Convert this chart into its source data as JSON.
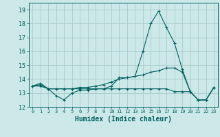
{
  "xlabel": "Humidex (Indice chaleur)",
  "xlim": [
    -0.5,
    23.5
  ],
  "ylim": [
    12,
    19.5
  ],
  "yticks": [
    12,
    13,
    14,
    15,
    16,
    17,
    18,
    19
  ],
  "xticks": [
    0,
    1,
    2,
    3,
    4,
    5,
    6,
    7,
    8,
    9,
    10,
    11,
    12,
    13,
    14,
    15,
    16,
    17,
    18,
    19,
    20,
    21,
    22,
    23
  ],
  "background_color": "#cce8e8",
  "grid_color": "#aacccc",
  "line_color": "#006060",
  "lines": [
    [
      13.5,
      13.7,
      13.3,
      12.8,
      12.5,
      13.0,
      13.2,
      13.2,
      13.3,
      13.3,
      13.5,
      14.1,
      14.1,
      14.2,
      16.0,
      18.0,
      18.9,
      17.7,
      16.6,
      14.7,
      13.1,
      12.5,
      12.5,
      13.4
    ],
    [
      13.5,
      13.6,
      13.3,
      13.3,
      13.3,
      13.3,
      13.4,
      13.4,
      13.5,
      13.6,
      13.8,
      14.0,
      14.1,
      14.2,
      14.3,
      14.5,
      14.6,
      14.8,
      14.8,
      14.5,
      13.1,
      12.5,
      12.5,
      13.4
    ],
    [
      13.5,
      13.5,
      13.3,
      13.3,
      13.3,
      13.3,
      13.3,
      13.3,
      13.3,
      13.3,
      13.3,
      13.3,
      13.3,
      13.3,
      13.3,
      13.3,
      13.3,
      13.3,
      13.1,
      13.1,
      13.1,
      12.5,
      12.5,
      13.4
    ]
  ]
}
